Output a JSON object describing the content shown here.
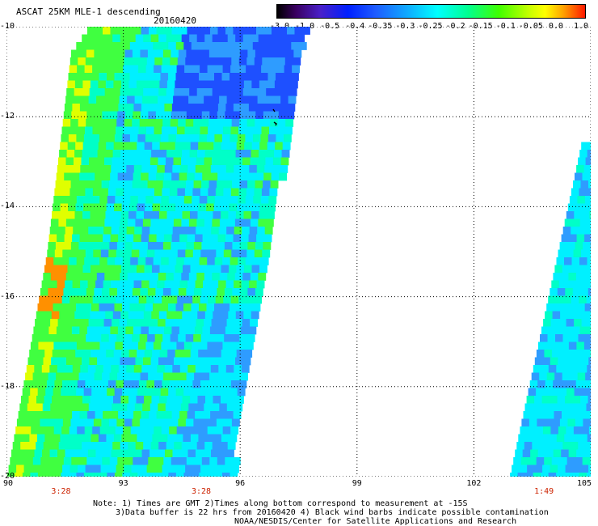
{
  "header": {
    "title": "ASCAT 25KM MLE-1 descending",
    "date": "20160420"
  },
  "colorbar": {
    "labels": [
      "-3.0",
      "-1.0",
      "-0.5",
      "-0.4",
      "-0.35",
      "-0.3",
      "-0.25",
      "-0.2",
      "-0.15",
      "-0.1",
      "-0.05",
      "0.0",
      "1.0"
    ]
  },
  "map": {
    "lat_labels": [
      "-10",
      "-12",
      "-14",
      "-16",
      "-18",
      "-20"
    ],
    "lon_labels": [
      "90",
      "93",
      "96",
      "99",
      "102",
      "105"
    ],
    "lat_range": [
      -20,
      -10
    ],
    "lon_range": [
      90,
      105
    ],
    "grid": "dotted",
    "time_labels": [
      {
        "lon": 91.4,
        "text": "3:28"
      },
      {
        "lon": 95.0,
        "text": "3:28"
      },
      {
        "lon": 103.8,
        "text": "1:49"
      }
    ],
    "colors": {
      "dark_blue": "#1e50ff",
      "blue": "#2e9cff",
      "cyan": "#00f0ff",
      "aqua": "#00ffc8",
      "green": "#40ff40",
      "yellow": "#e0ff00",
      "orange": "#ff9000"
    }
  },
  "notes": {
    "line1": "Note: 1) Times are GMT 2)Times along bottom correspond to measurement at -15S",
    "line2": "3)Data buffer is 22 hrs from 20160420 4) Black wind barbs indicate possible contamination",
    "line3": "NOAA/NESDIS/Center for Satellite Applications and Research"
  }
}
